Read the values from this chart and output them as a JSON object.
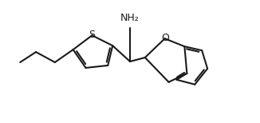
{
  "bg_color": "#ffffff",
  "line_color": "#1a1a1a",
  "line_width": 1.5,
  "text_color": "#1a1a1a",
  "label_NH2": "NH₂",
  "label_S": "S",
  "label_O": "O",
  "figsize": [
    3.26,
    1.54
  ],
  "dpi": 100
}
